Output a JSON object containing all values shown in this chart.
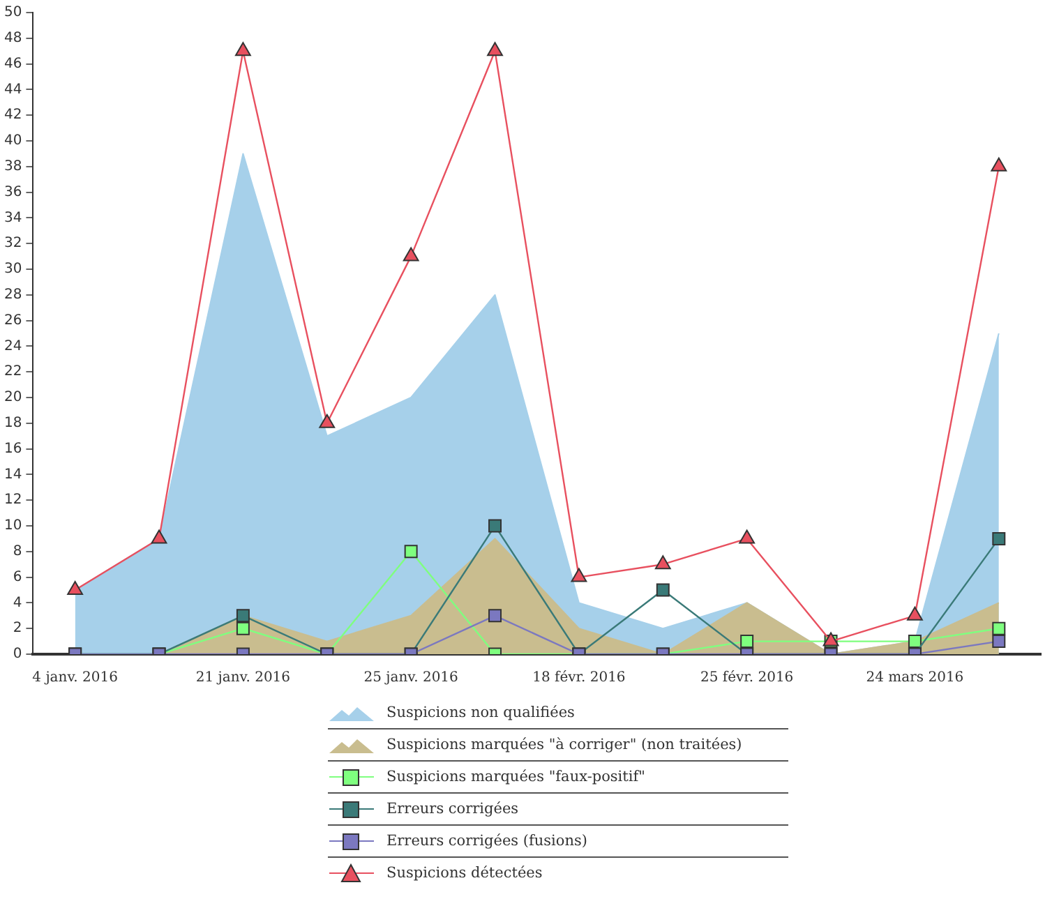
{
  "chart_data": {
    "type": "line",
    "categories": [
      "4 janv. 2016",
      null,
      "21 janv. 2016",
      null,
      "25 janv. 2016",
      null,
      "18 févr. 2016",
      null,
      "25 févr. 2016",
      null,
      "24 mars 2016",
      null
    ],
    "series": [
      {
        "name": "Suspicions non qualifiées",
        "type": "area",
        "color": "#a6d0ea",
        "values": [
          5,
          9,
          39,
          17,
          20,
          28,
          4,
          2,
          4,
          0,
          1,
          25
        ]
      },
      {
        "name": "Suspicions marquées \"à corriger\" (non traitées)",
        "type": "area",
        "color": "#c9bd8f",
        "values": [
          0,
          0,
          3,
          1,
          3,
          9,
          2,
          0,
          4,
          0,
          1,
          4
        ]
      },
      {
        "name": "Suspicions marquées \"faux-positif\"",
        "marker": "square",
        "color": "#7fff7f",
        "values": [
          0,
          0,
          2,
          0,
          8,
          0,
          0,
          0,
          1,
          1,
          1,
          2
        ]
      },
      {
        "name": "Erreurs corrigées",
        "marker": "square",
        "color": "#3a7a78",
        "values": [
          0,
          0,
          3,
          0,
          0,
          10,
          0,
          5,
          0,
          0,
          0,
          9
        ]
      },
      {
        "name": "Erreurs corrigées (fusions)",
        "marker": "square",
        "color": "#7b78c0",
        "values": [
          0,
          0,
          0,
          0,
          0,
          3,
          0,
          0,
          0,
          0,
          0,
          1
        ]
      },
      {
        "name": "Suspicions détectées",
        "marker": "triangle",
        "color": "#e8505f",
        "values": [
          5,
          9,
          47,
          18,
          31,
          47,
          6,
          7,
          9,
          1,
          3,
          38
        ]
      }
    ],
    "ylim": [
      0,
      50
    ],
    "yticks": [
      0,
      2,
      4,
      6,
      8,
      10,
      12,
      14,
      16,
      18,
      20,
      22,
      24,
      26,
      28,
      30,
      32,
      34,
      36,
      38,
      40,
      42,
      44,
      46,
      48,
      50
    ],
    "grid": false,
    "legend": "bottom"
  }
}
